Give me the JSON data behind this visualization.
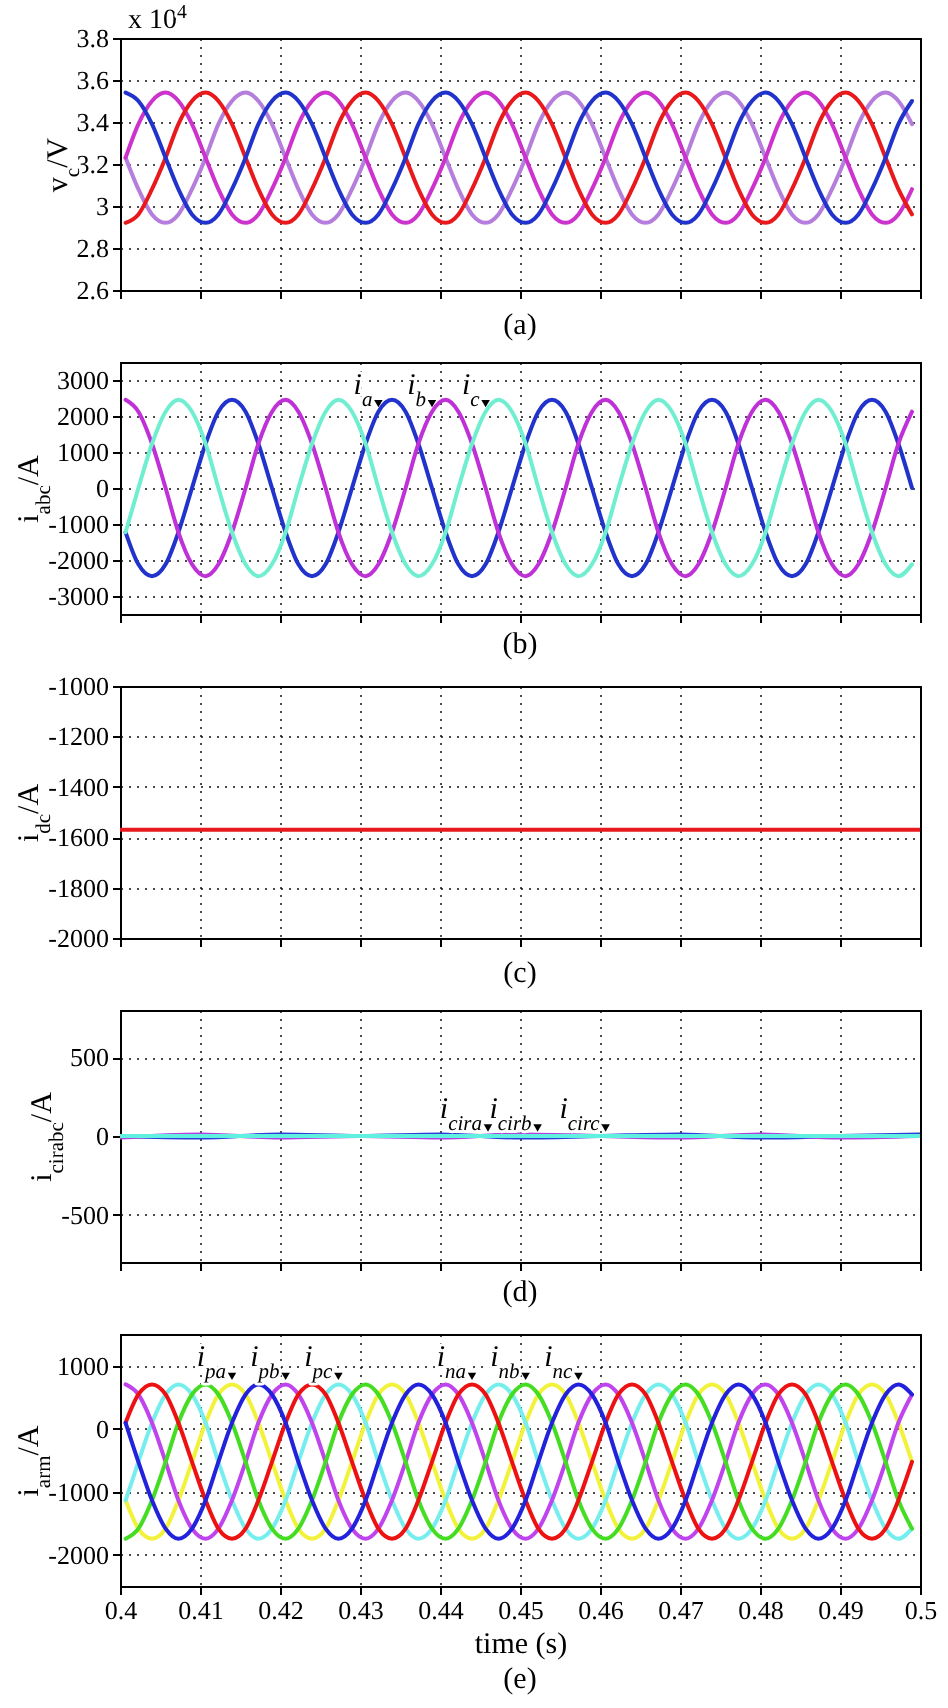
{
  "chart_data": [
    {
      "type": "line",
      "ylabel": "v$_{c}$/V",
      "annotations": [
        "x 10$^{4}$",
        "(a)"
      ],
      "x": [
        0.4007,
        0.4023,
        0.404,
        0.4057,
        0.4073,
        0.409,
        0.4107,
        0.4123,
        0.414,
        0.4157,
        0.4173,
        0.419,
        0.4207,
        0.4223,
        0.424,
        0.4257,
        0.4273,
        0.429,
        0.4307,
        0.4323,
        0.434,
        0.4357,
        0.4373,
        0.439,
        0.4407,
        0.4423,
        0.444,
        0.4457,
        0.4473,
        0.449,
        0.4507,
        0.4523,
        0.454,
        0.4557,
        0.4573,
        0.459,
        0.4607,
        0.4623,
        0.464,
        0.4657,
        0.4673,
        0.469,
        0.4707,
        0.4723,
        0.474,
        0.4757,
        0.4773,
        0.479,
        0.4807,
        0.4823,
        0.484,
        0.4857,
        0.4873,
        0.489,
        0.4907,
        0.4923,
        0.494,
        0.4957,
        0.4973,
        0.499
      ],
      "series": [
        {
          "color": "#b57edc",
          "values": [
            3.23,
            3.08,
            2.96,
            2.92,
            2.96,
            3.08,
            3.23,
            3.39,
            3.5,
            3.54,
            3.5,
            3.39,
            3.23,
            3.08,
            2.96,
            2.92,
            2.96,
            3.08,
            3.23,
            3.39,
            3.5,
            3.54,
            3.5,
            3.39,
            3.23,
            3.08,
            2.96,
            2.92,
            2.96,
            3.08,
            3.23,
            3.39,
            3.5,
            3.54,
            3.5,
            3.39,
            3.23,
            3.08,
            2.96,
            2.92,
            2.96,
            3.08,
            3.23,
            3.39,
            3.5,
            3.54,
            3.5,
            3.39,
            3.23,
            3.08,
            2.96,
            2.92,
            2.96,
            3.08,
            3.23,
            3.39,
            3.5,
            3.54,
            3.5,
            3.39
          ]
        },
        {
          "color": "#cc33cc",
          "values": [
            3.23,
            3.39,
            3.5,
            3.54,
            3.5,
            3.39,
            3.23,
            3.08,
            2.96,
            2.92,
            2.96,
            3.08,
            3.23,
            3.39,
            3.5,
            3.54,
            3.5,
            3.39,
            3.23,
            3.08,
            2.96,
            2.92,
            2.96,
            3.08,
            3.23,
            3.39,
            3.5,
            3.54,
            3.5,
            3.39,
            3.23,
            3.08,
            2.96,
            2.92,
            2.96,
            3.08,
            3.23,
            3.39,
            3.5,
            3.54,
            3.5,
            3.39,
            3.23,
            3.08,
            2.96,
            2.92,
            2.96,
            3.08,
            3.23,
            3.39,
            3.5,
            3.54,
            3.5,
            3.39,
            3.23,
            3.08,
            2.96,
            2.92,
            2.96,
            3.08
          ]
        },
        {
          "color": "#e8191c",
          "values": [
            2.92,
            2.96,
            3.08,
            3.23,
            3.39,
            3.5,
            3.54,
            3.5,
            3.39,
            3.23,
            3.08,
            2.96,
            2.92,
            2.96,
            3.08,
            3.23,
            3.39,
            3.5,
            3.54,
            3.5,
            3.39,
            3.23,
            3.08,
            2.96,
            2.92,
            2.96,
            3.08,
            3.23,
            3.39,
            3.5,
            3.54,
            3.5,
            3.39,
            3.23,
            3.08,
            2.96,
            2.92,
            2.96,
            3.08,
            3.23,
            3.39,
            3.5,
            3.54,
            3.5,
            3.39,
            3.23,
            3.08,
            2.96,
            2.92,
            2.96,
            3.08,
            3.23,
            3.39,
            3.5,
            3.54,
            3.5,
            3.39,
            3.23,
            3.08,
            2.96
          ]
        },
        {
          "color": "#2233cc",
          "values": [
            3.54,
            3.5,
            3.39,
            3.23,
            3.08,
            2.96,
            2.92,
            2.96,
            3.08,
            3.23,
            3.39,
            3.5,
            3.54,
            3.5,
            3.39,
            3.23,
            3.08,
            2.96,
            2.92,
            2.96,
            3.08,
            3.23,
            3.39,
            3.5,
            3.54,
            3.5,
            3.39,
            3.23,
            3.08,
            2.96,
            2.92,
            2.96,
            3.08,
            3.23,
            3.39,
            3.5,
            3.54,
            3.5,
            3.39,
            3.23,
            3.08,
            2.96,
            2.92,
            2.96,
            3.08,
            3.23,
            3.39,
            3.5,
            3.54,
            3.5,
            3.39,
            3.23,
            3.08,
            2.96,
            2.92,
            2.96,
            3.08,
            3.23,
            3.39,
            3.5
          ]
        }
      ],
      "xlim": [
        0.4,
        0.5
      ],
      "ylim": [
        2.6,
        3.8
      ],
      "xticks": [
        0.4,
        0.41,
        0.42,
        0.43,
        0.44,
        0.45,
        0.46,
        0.47,
        0.48,
        0.49,
        0.5
      ],
      "yticks": [
        2.6,
        2.8,
        3,
        3.2,
        3.4,
        3.6,
        3.8
      ],
      "grid": true,
      "tick_labels": "y"
    },
    {
      "type": "line",
      "ylabel": "i$_{abc}$/A",
      "annotations": [
        {
          "text": "i$_{a}$",
          "x": 0.4323,
          "y": 2120
        },
        {
          "text": "i$_{b}$",
          "x": 0.439,
          "y": 2120
        },
        {
          "text": "i$_{c}$",
          "x": 0.4457,
          "y": 2120
        },
        "(b)"
      ],
      "x": [
        0.4007,
        0.4023,
        0.404,
        0.4057,
        0.4073,
        0.409,
        0.4107,
        0.4123,
        0.414,
        0.4157,
        0.4173,
        0.419,
        0.4207,
        0.4223,
        0.424,
        0.4257,
        0.4273,
        0.429,
        0.4307,
        0.4323,
        0.434,
        0.4357,
        0.4373,
        0.439,
        0.4407,
        0.4423,
        0.444,
        0.4457,
        0.4473,
        0.449,
        0.4507,
        0.4523,
        0.454,
        0.4557,
        0.4573,
        0.459,
        0.4607,
        0.4623,
        0.464,
        0.4657,
        0.4673,
        0.469,
        0.4707,
        0.4723,
        0.474,
        0.4757,
        0.4773,
        0.479,
        0.4807,
        0.4823,
        0.484,
        0.4857,
        0.4873,
        0.489,
        0.4907,
        0.4923,
        0.494,
        0.4957,
        0.4973,
        0.499
      ],
      "series": [
        {
          "color": "#2233cc",
          "values": [
            -1230,
            -2120,
            -2450,
            -2120,
            -1230,
            0,
            1230,
            2120,
            2450,
            2120,
            1230,
            0,
            -1230,
            -2120,
            -2450,
            -2120,
            -1230,
            0,
            1230,
            2120,
            2450,
            2120,
            1230,
            0,
            -1230,
            -2120,
            -2450,
            -2120,
            -1230,
            0,
            1230,
            2120,
            2450,
            2120,
            1230,
            0,
            -1230,
            -2120,
            -2450,
            -2120,
            -1230,
            0,
            1230,
            2120,
            2450,
            2120,
            1230,
            0,
            -1230,
            -2120,
            -2450,
            -2120,
            -1230,
            0,
            1230,
            2120,
            2450,
            2120,
            1230,
            0
          ]
        },
        {
          "color": "#c030d8",
          "values": [
            2450,
            2120,
            1230,
            0,
            -1230,
            -2120,
            -2450,
            -2120,
            -1230,
            0,
            1230,
            2120,
            2450,
            2120,
            1230,
            0,
            -1230,
            -2120,
            -2450,
            -2120,
            -1230,
            0,
            1230,
            2120,
            2450,
            2120,
            1230,
            0,
            -1230,
            -2120,
            -2450,
            -2120,
            -1230,
            0,
            1230,
            2120,
            2450,
            2120,
            1230,
            0,
            -1230,
            -2120,
            -2450,
            -2120,
            -1230,
            0,
            1230,
            2120,
            2450,
            2120,
            1230,
            0,
            -1230,
            -2120,
            -2450,
            -2120,
            -1230,
            0,
            1230,
            2120
          ]
        },
        {
          "color": "#70eed0",
          "values": [
            -1230,
            0,
            1230,
            2120,
            2450,
            2120,
            1230,
            0,
            -1230,
            -2120,
            -2450,
            -2120,
            -1230,
            0,
            1230,
            2120,
            2450,
            2120,
            1230,
            0,
            -1230,
            -2120,
            -2450,
            -2120,
            -1230,
            0,
            1230,
            2120,
            2450,
            2120,
            1230,
            0,
            -1230,
            -2120,
            -2450,
            -2120,
            -1230,
            0,
            1230,
            2120,
            2450,
            2120,
            1230,
            0,
            -1230,
            -2120,
            -2450,
            -2120,
            -1230,
            0,
            1230,
            2120,
            2450,
            2120,
            1230,
            0,
            -1230,
            -2120,
            -2450,
            -2120
          ]
        }
      ],
      "xlim": [
        0.4,
        0.5
      ],
      "ylim": [
        -3500,
        3500
      ],
      "xticks": [
        0.4,
        0.41,
        0.42,
        0.43,
        0.44,
        0.45,
        0.46,
        0.47,
        0.48,
        0.49,
        0.5
      ],
      "yticks": [
        -3000,
        -2000,
        -1000,
        0,
        1000,
        2000,
        3000
      ],
      "grid": true,
      "tick_labels": "y"
    },
    {
      "type": "line",
      "ylabel": "i$_{dc}$/A",
      "annotations": [
        "(c)"
      ],
      "series": [
        {
          "color": "#e8191c",
          "x": [
            0.4,
            0.5
          ],
          "values": [
            -1570,
            -1570
          ]
        }
      ],
      "xlim": [
        0.4,
        0.5
      ],
      "ylim": [
        -2000,
        -1000
      ],
      "xticks": [
        0.4,
        0.41,
        0.42,
        0.43,
        0.44,
        0.45,
        0.46,
        0.47,
        0.48,
        0.49,
        0.5
      ],
      "yticks": [
        -2000,
        -1800,
        -1600,
        -1400,
        -1200,
        -1000
      ],
      "grid": true,
      "tick_labels": "y"
    },
    {
      "type": "line",
      "ylabel": "i$_{cirabc}$/A",
      "annotations": [
        {
          "text": "i$_{cira}$",
          "x": 0.446,
          "y": 0
        },
        {
          "text": "i$_{cirb}$",
          "x": 0.4522,
          "y": 0
        },
        {
          "text": "i$_{circ}$",
          "x": 0.4607,
          "y": 0
        },
        "(d)"
      ],
      "x": [
        0.4,
        0.41,
        0.42,
        0.43,
        0.44,
        0.45,
        0.46,
        0.47,
        0.48,
        0.49,
        0.5
      ],
      "series": [
        {
          "color": "#2a3ed8",
          "values": [
            0,
            -10,
            10,
            0,
            10,
            -10,
            0,
            10,
            -10,
            0,
            10
          ]
        },
        {
          "color": "#b040e0",
          "values": [
            -10,
            10,
            -10,
            0,
            -10,
            10,
            0,
            -10,
            10,
            -10,
            0
          ]
        },
        {
          "color": "#60f0e0",
          "values": [
            0,
            0,
            0,
            0,
            0,
            0,
            0,
            0,
            0,
            0,
            0
          ]
        }
      ],
      "xlim": [
        0.4,
        0.5
      ],
      "ylim": [
        -800,
        800
      ],
      "xticks": [
        0.4,
        0.41,
        0.42,
        0.43,
        0.44,
        0.45,
        0.46,
        0.47,
        0.48,
        0.49,
        0.5
      ],
      "yticks": [
        -500,
        0,
        500
      ],
      "grid": true,
      "tick_labels": "y"
    },
    {
      "type": "line",
      "xlabel": "time (s)",
      "ylabel": "i$_{arm}$/A",
      "annotations": [
        {
          "text": "i$_{pa}$",
          "x": 0.414,
          "y": 700
        },
        {
          "text": "i$_{pb}$",
          "x": 0.4207,
          "y": 700
        },
        {
          "text": "i$_{pc}$",
          "x": 0.4273,
          "y": 700
        },
        {
          "text": "i$_{na}$",
          "x": 0.444,
          "y": 700
        },
        {
          "text": "i$_{nb}$",
          "x": 0.4507,
          "y": 700
        },
        {
          "text": "i$_{nc}$",
          "x": 0.4573,
          "y": 700
        },
        "(e)"
      ],
      "x": [
        0.4007,
        0.4023,
        0.404,
        0.4057,
        0.4073,
        0.409,
        0.4107,
        0.4123,
        0.414,
        0.4157,
        0.4173,
        0.419,
        0.4207,
        0.4223,
        0.424,
        0.4257,
        0.4273,
        0.429,
        0.4307,
        0.4323,
        0.434,
        0.4357,
        0.4373,
        0.439,
        0.4407,
        0.4423,
        0.444,
        0.4457,
        0.4473,
        0.449,
        0.4507,
        0.4523,
        0.454,
        0.4557,
        0.4573,
        0.459,
        0.4607,
        0.4623,
        0.464,
        0.4657,
        0.4673,
        0.469,
        0.4707,
        0.4723,
        0.474,
        0.4757,
        0.4773,
        0.479,
        0.4807,
        0.4823,
        0.484,
        0.4857,
        0.4873,
        0.489,
        0.4907,
        0.4923,
        0.494,
        0.4957,
        0.4973,
        0.499
      ],
      "series": [
        {
          "color": "#f2f23a",
          "values": [
            -1140,
            -1590,
            -1750,
            -1590,
            -1140,
            -530,
            90,
            540,
            700,
            540,
            90,
            -530,
            -1140,
            -1590,
            -1750,
            -1590,
            -1140,
            -530,
            90,
            540,
            700,
            540,
            90,
            -530,
            -1140,
            -1590,
            -1750,
            -1590,
            -1140,
            -530,
            90,
            540,
            700,
            540,
            90,
            -530,
            -1140,
            -1590,
            -1750,
            -1590,
            -1140,
            -530,
            90,
            540,
            700,
            540,
            90,
            -530,
            -1140,
            -1590,
            -1750,
            -1590,
            -1140,
            -530,
            90,
            540,
            700,
            540,
            90,
            -530
          ]
        },
        {
          "color": "#77eeee",
          "values": [
            -1140,
            -530,
            90,
            540,
            700,
            540,
            90,
            -530,
            -1140,
            -1590,
            -1750,
            -1590,
            -1140,
            -530,
            90,
            540,
            700,
            540,
            90,
            -530,
            -1140,
            -1590,
            -1750,
            -1590,
            -1140,
            -530,
            90,
            540,
            700,
            540,
            90,
            -530,
            -1140,
            -1590,
            -1750,
            -1590,
            -1140,
            -530,
            90,
            540,
            700,
            540,
            90,
            -530,
            -1140,
            -1590,
            -1750,
            -1590,
            -1140,
            -530,
            90,
            540,
            700,
            540,
            90,
            -530,
            -1140,
            -1590,
            -1750,
            -1590
          ]
        },
        {
          "color": "#c044ee",
          "values": [
            700,
            540,
            90,
            -530,
            -1140,
            -1590,
            -1750,
            -1590,
            -1140,
            -530,
            90,
            540,
            700,
            540,
            90,
            -530,
            -1140,
            -1590,
            -1750,
            -1590,
            -1140,
            -530,
            90,
            540,
            700,
            540,
            90,
            -530,
            -1140,
            -1590,
            -1750,
            -1590,
            -1140,
            -530,
            90,
            540,
            700,
            540,
            90,
            -530,
            -1140,
            -1590,
            -1750,
            -1590,
            -1140,
            -530,
            90,
            540,
            700,
            540,
            90,
            -530,
            -1140,
            -1590,
            -1750,
            -1590,
            -1140,
            -530,
            90,
            540
          ]
        },
        {
          "color": "#44dd22",
          "values": [
            -1750,
            -1590,
            -1140,
            -530,
            90,
            540,
            700,
            540,
            90,
            -530,
            -1140,
            -1590,
            -1750,
            -1590,
            -1140,
            -530,
            90,
            540,
            700,
            540,
            90,
            -530,
            -1140,
            -1590,
            -1750,
            -1590,
            -1140,
            -530,
            90,
            540,
            700,
            540,
            90,
            -530,
            -1140,
            -1590,
            -1750,
            -1590,
            -1140,
            -530,
            90,
            540,
            700,
            540,
            90,
            -530,
            -1140,
            -1590,
            -1750,
            -1590,
            -1140,
            -530,
            90,
            540,
            700,
            540,
            90,
            -530,
            -1140,
            -1590
          ]
        },
        {
          "color": "#ee1111",
          "values": [
            90,
            540,
            700,
            540,
            90,
            -530,
            -1140,
            -1590,
            -1750,
            -1590,
            -1140,
            -530,
            90,
            540,
            700,
            540,
            90,
            -530,
            -1140,
            -1590,
            -1750,
            -1590,
            -1140,
            -530,
            90,
            540,
            700,
            540,
            90,
            -530,
            -1140,
            -1590,
            -1750,
            -1590,
            -1140,
            -530,
            90,
            540,
            700,
            540,
            90,
            -530,
            -1140,
            -1590,
            -1750,
            -1590,
            -1140,
            -530,
            90,
            540,
            700,
            540,
            90,
            -530,
            -1140,
            -1590,
            -1750,
            -1590,
            -1140,
            -530
          ]
        },
        {
          "color": "#2222dd",
          "values": [
            90,
            -530,
            -1140,
            -1590,
            -1750,
            -1590,
            -1140,
            -530,
            90,
            540,
            700,
            540,
            90,
            -530,
            -1140,
            -1590,
            -1750,
            -1590,
            -1140,
            -530,
            90,
            540,
            700,
            540,
            90,
            -530,
            -1140,
            -1590,
            -1750,
            -1590,
            -1140,
            -530,
            90,
            540,
            700,
            540,
            90,
            -530,
            -1140,
            -1590,
            -1750,
            -1590,
            -1140,
            -530,
            90,
            540,
            700,
            540,
            90,
            -530,
            -1140,
            -1590,
            -1750,
            -1590,
            -1140,
            -530,
            90,
            540,
            700,
            540
          ]
        }
      ],
      "xlim": [
        0.4,
        0.5
      ],
      "ylim": [
        -2500,
        1500
      ],
      "xticks": [
        0.4,
        0.41,
        0.42,
        0.43,
        0.44,
        0.45,
        0.46,
        0.47,
        0.48,
        0.49,
        0.5
      ],
      "yticks": [
        -2000,
        -1000,
        0,
        1000
      ],
      "grid": true
    }
  ]
}
